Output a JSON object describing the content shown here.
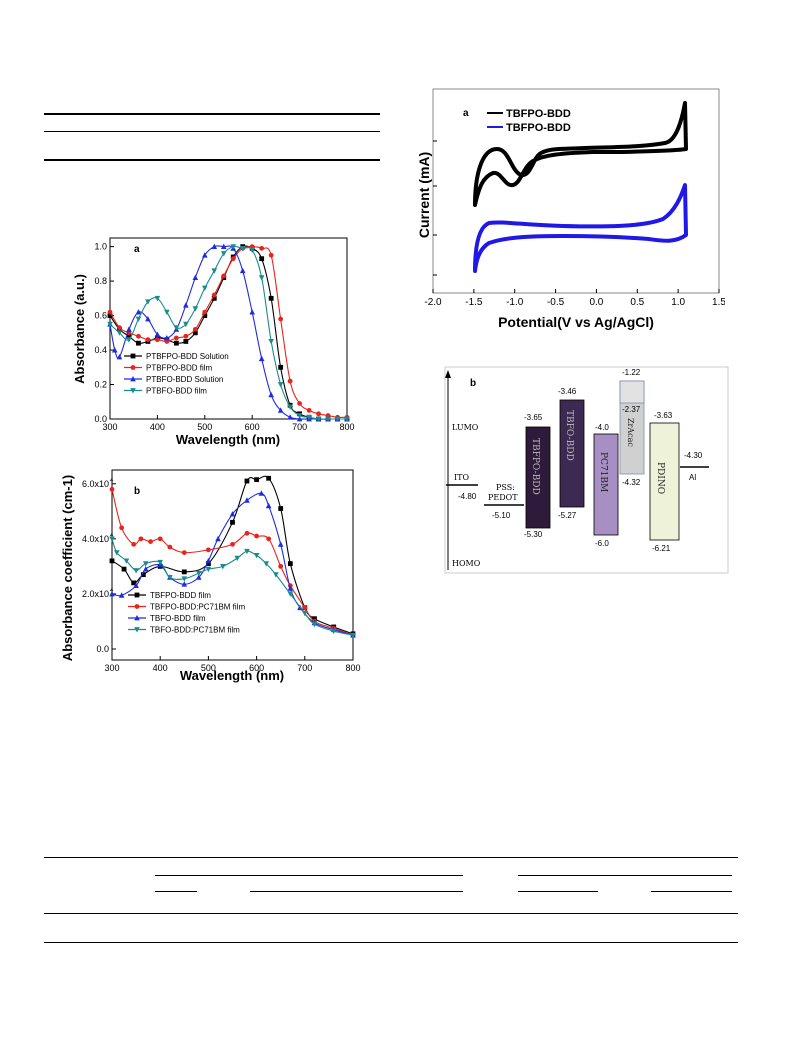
{
  "chart_data": [
    {
      "id": "uv_a",
      "type": "line",
      "panel_label": "a",
      "xlabel": "Wavelength (nm)",
      "ylabel": "Absorbance (a.u.)",
      "xlim": [
        300,
        800
      ],
      "ylim": [
        0.0,
        1.05
      ],
      "xticks": [
        "300",
        "400",
        "500",
        "600",
        "700",
        "800"
      ],
      "yticks": [
        "0.0",
        "0.2",
        "0.4",
        "0.6",
        "0.8",
        "1.0"
      ],
      "legend_position": "lower-left",
      "series": [
        {
          "name": "PTBFPO-BDD Solution",
          "color": "#000000",
          "marker": "square",
          "x": [
            300,
            320,
            340,
            360,
            380,
            400,
            420,
            440,
            460,
            480,
            500,
            520,
            540,
            560,
            580,
            600,
            620,
            640,
            660,
            680,
            700,
            720,
            740,
            760,
            780,
            800
          ],
          "y": [
            0.6,
            0.52,
            0.48,
            0.44,
            0.45,
            0.47,
            0.46,
            0.44,
            0.45,
            0.5,
            0.6,
            0.7,
            0.82,
            0.94,
            1.0,
            0.99,
            0.93,
            0.7,
            0.3,
            0.08,
            0.03,
            0.01,
            0.0,
            0.0,
            0.0,
            0.0
          ]
        },
        {
          "name": "PTBFPO-BDD film",
          "color": "#e8241c",
          "marker": "circle",
          "x": [
            300,
            320,
            340,
            360,
            380,
            400,
            420,
            440,
            460,
            480,
            500,
            520,
            540,
            560,
            580,
            600,
            620,
            640,
            660,
            680,
            700,
            720,
            740,
            760,
            780,
            800
          ],
          "y": [
            0.62,
            0.53,
            0.5,
            0.48,
            0.46,
            0.46,
            0.45,
            0.47,
            0.48,
            0.52,
            0.62,
            0.72,
            0.83,
            0.93,
            0.99,
            1.0,
            0.99,
            0.95,
            0.58,
            0.22,
            0.09,
            0.05,
            0.03,
            0.02,
            0.01,
            0.01
          ]
        },
        {
          "name": "PTBFO-BDD Solution",
          "color": "#1f2be0",
          "marker": "triangle-up",
          "x": [
            300,
            310,
            320,
            340,
            360,
            380,
            400,
            420,
            440,
            460,
            480,
            500,
            520,
            540,
            560,
            580,
            600,
            620,
            640,
            660,
            680,
            700,
            720,
            740,
            760,
            780,
            800
          ],
          "y": [
            0.55,
            0.4,
            0.36,
            0.52,
            0.62,
            0.58,
            0.49,
            0.47,
            0.52,
            0.66,
            0.82,
            0.95,
            1.0,
            1.0,
            0.99,
            0.86,
            0.62,
            0.35,
            0.14,
            0.05,
            0.01,
            0.0,
            0.0,
            0.0,
            0.0,
            0.0,
            0.0
          ]
        },
        {
          "name": "PTBFO-BDD film",
          "color": "#1b8c8c",
          "marker": "triangle-down",
          "x": [
            300,
            320,
            340,
            360,
            380,
            400,
            420,
            440,
            460,
            480,
            500,
            520,
            540,
            560,
            580,
            600,
            620,
            640,
            660,
            680,
            700,
            720,
            740,
            760,
            780,
            800
          ],
          "y": [
            0.55,
            0.5,
            0.46,
            0.58,
            0.68,
            0.7,
            0.62,
            0.53,
            0.55,
            0.64,
            0.76,
            0.86,
            0.96,
            1.0,
            0.99,
            0.98,
            0.82,
            0.45,
            0.2,
            0.07,
            0.02,
            0.01,
            0.0,
            0.0,
            0.0,
            0.0
          ]
        }
      ]
    },
    {
      "id": "coef_b",
      "type": "line",
      "panel_label": "b",
      "xlabel": "Wavelength (nm)",
      "ylabel": "Absorbance coefficient (cm-1)",
      "xlim": [
        300,
        800
      ],
      "ylim": [
        -0.4,
        6.5
      ],
      "y_unit_multiplier": "x10^4",
      "xticks": [
        "300",
        "400",
        "500",
        "600",
        "700",
        "800"
      ],
      "yticks": [
        "0.0",
        "2.0x10",
        "4.0x10",
        "6.0x10"
      ],
      "ytick_exponent": "4",
      "legend_position": "lower-left",
      "series": [
        {
          "name": "TBFPO-BDD film",
          "color": "#000000",
          "marker": "square",
          "x": [
            300,
            325,
            345,
            365,
            400,
            450,
            500,
            550,
            580,
            600,
            625,
            650,
            670,
            700,
            720,
            760,
            800
          ],
          "y": [
            3.2,
            2.9,
            2.4,
            2.7,
            3.0,
            2.8,
            3.1,
            4.6,
            6.1,
            6.15,
            6.2,
            5.1,
            3.1,
            1.5,
            1.1,
            0.8,
            0.55
          ]
        },
        {
          "name": "TBFPO-BDD:PC71BM film",
          "color": "#e8241c",
          "marker": "circle",
          "x": [
            300,
            320,
            345,
            360,
            380,
            400,
            420,
            450,
            500,
            550,
            580,
            600,
            625,
            650,
            670,
            700,
            720,
            760,
            800
          ],
          "y": [
            5.8,
            4.4,
            3.8,
            4.0,
            3.9,
            4.0,
            3.7,
            3.5,
            3.6,
            3.8,
            4.2,
            4.1,
            4.0,
            3.0,
            2.3,
            1.5,
            1.0,
            0.75,
            0.5
          ]
        },
        {
          "name": "TBFO-BDD film",
          "color": "#1f2be0",
          "marker": "triangle-up",
          "x": [
            300,
            320,
            350,
            370,
            400,
            420,
            450,
            480,
            500,
            520,
            550,
            580,
            610,
            625,
            650,
            670,
            690,
            720,
            760,
            800
          ],
          "y": [
            2.0,
            1.95,
            2.3,
            2.9,
            3.05,
            2.6,
            2.35,
            2.6,
            3.2,
            4.0,
            4.9,
            5.4,
            5.65,
            5.2,
            3.8,
            2.2,
            1.5,
            0.95,
            0.7,
            0.5
          ]
        },
        {
          "name": "TBFO-BDD:PC71BM film",
          "color": "#1b8c8c",
          "marker": "triangle-down",
          "x": [
            300,
            310,
            330,
            350,
            370,
            400,
            420,
            450,
            480,
            500,
            530,
            560,
            580,
            600,
            620,
            640,
            670,
            700,
            720,
            760,
            800
          ],
          "y": [
            4.0,
            3.5,
            3.2,
            2.85,
            3.1,
            3.15,
            2.6,
            2.55,
            2.75,
            2.9,
            3.0,
            3.3,
            3.55,
            3.4,
            3.1,
            2.7,
            2.0,
            1.3,
            0.9,
            0.65,
            0.5
          ]
        }
      ]
    },
    {
      "id": "cv_a",
      "type": "line",
      "panel_label": "a",
      "xlabel": "Potential(V vs Ag/AgCl)",
      "ylabel": "Current (mA)",
      "xlim": [
        -2.0,
        1.5
      ],
      "xticks": [
        "-2.0",
        "-1.5",
        "-1.0",
        "-0.5",
        "0.0",
        "0.5",
        "1.0",
        "1.5"
      ],
      "legend_position": "top-left",
      "series": [
        {
          "name": "TBFPO-BDD",
          "color": "#000000"
        },
        {
          "name": "TBFPO-BDD",
          "color": "#1f18e6"
        }
      ]
    }
  ],
  "energy_diagram": {
    "panel_label": "b",
    "lumo_label": "LUMO",
    "homo_label": "HOMO",
    "ito_label": "ITO",
    "ito_value": "-4.80",
    "pedot_label_1": "PSS:",
    "pedot_label_2": "PEDOT",
    "pedot_value": "-5.10",
    "layers": [
      {
        "name": "TBFPO-BDD",
        "top": "-3.65",
        "bottom": "-5.30"
      },
      {
        "name": "TBFO-BDD",
        "top": "-3.46",
        "bottom": "-5.27"
      },
      {
        "name": "PC71BM",
        "top": "-4.0",
        "bottom": "-6.0"
      },
      {
        "name": "ZrAcac",
        "top": "-1.22",
        "mid": "-2.37",
        "bottom": "-4.32"
      },
      {
        "name": "PDINO",
        "top": "-3.63",
        "bottom": "-6.21"
      }
    ],
    "al_value": "-4.30",
    "al_label": "Al"
  }
}
